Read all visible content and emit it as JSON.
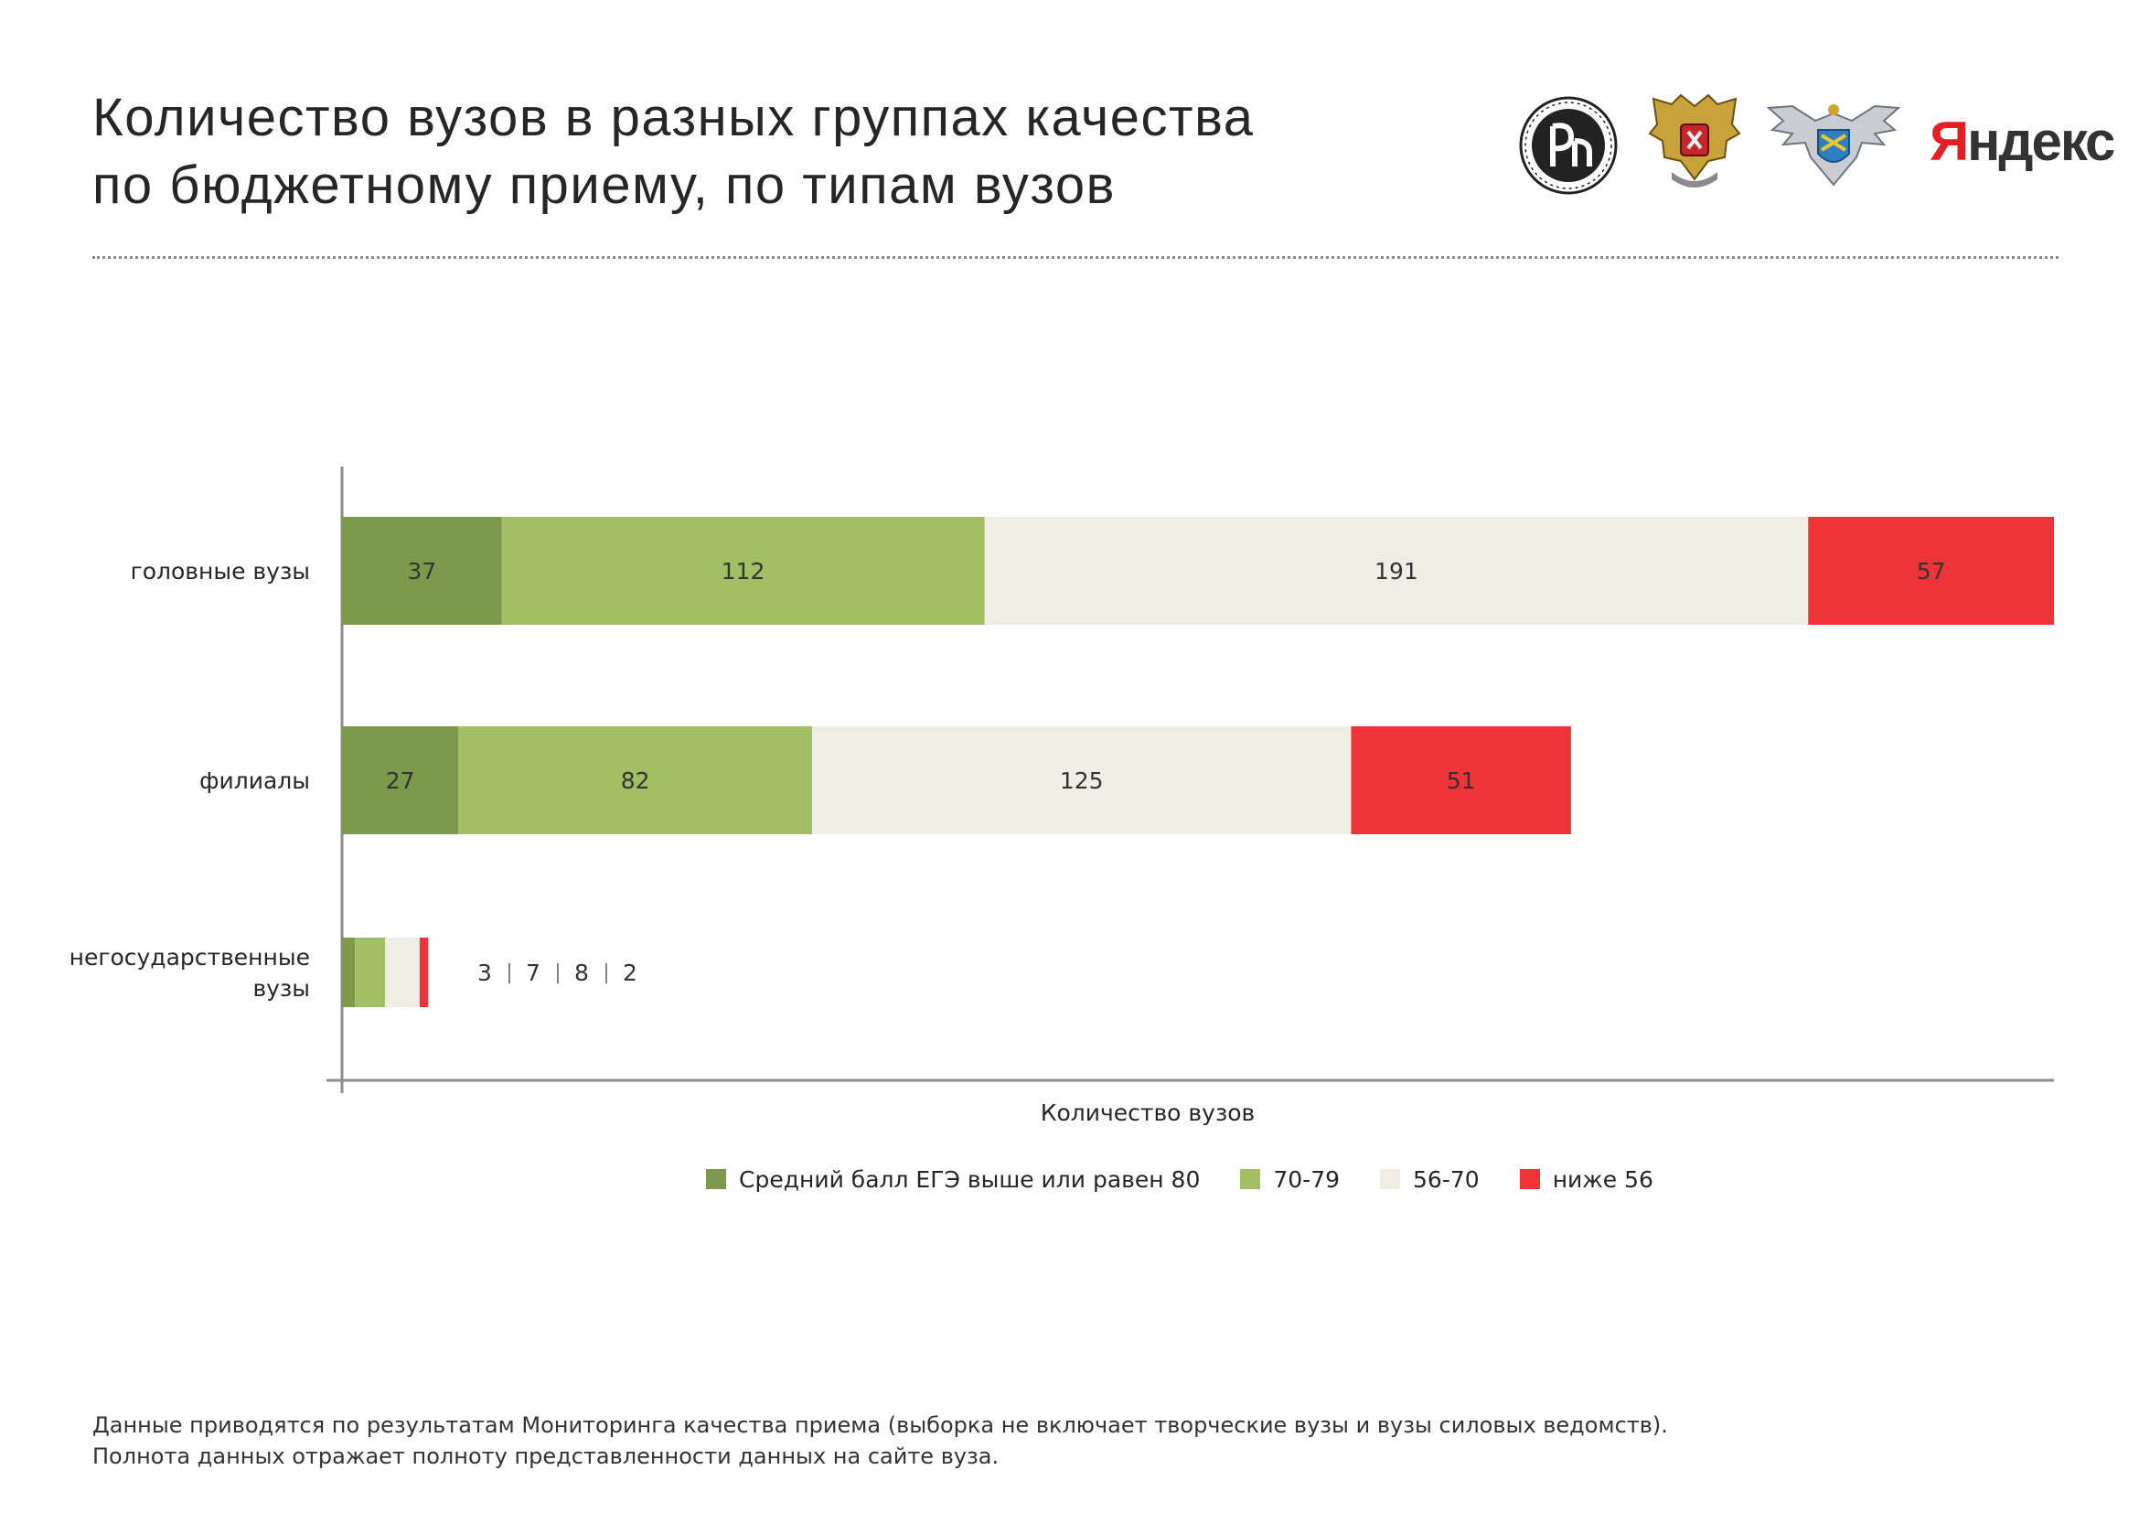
{
  "header": {
    "title_line1": "Количество вузов в разных группах качества",
    "title_line2": "по бюджетному приему, по типам вузов",
    "logos": [
      "hse-logo",
      "ministry-eagle-emblem",
      "rosobrnadzor-emblem",
      "yandex-logo"
    ],
    "yandex_first": "Я",
    "yandex_rest": "ндекс"
  },
  "chart_data": {
    "type": "bar",
    "orientation": "horizontal",
    "stacked": true,
    "categories": [
      "головные вузы",
      "филиалы",
      "негосударственные вузы"
    ],
    "category_lines": [
      [
        "головные вузы"
      ],
      [
        "филиалы"
      ],
      [
        "негосударственные",
        "вузы"
      ]
    ],
    "series": [
      {
        "name": "Средний балл ЕГЭ выше или равен 80",
        "color": "#7d9a4c",
        "values": [
          37,
          27,
          3
        ]
      },
      {
        "name": "70-79",
        "color": "#a2bf65",
        "values": [
          112,
          82,
          7
        ]
      },
      {
        "name": "56-70",
        "color": "#efede4",
        "values": [
          191,
          125,
          8
        ]
      },
      {
        "name": "ниже 56",
        "color": "#ee3439",
        "values": [
          57,
          51,
          2
        ]
      }
    ],
    "xlabel": "Количество вузов",
    "ylabel": "",
    "xlim": [
      0,
      397
    ],
    "grid": false,
    "legend_position": "bottom",
    "small_values_separator": "|"
  },
  "footnote": {
    "line1": "Данные приводятся по результатам Мониторинга качества приема (выборка не включает творческие вузы и вузы силовых ведомств).",
    "line2": "Полнота данных отражает полноту представленности данных на сайте вуза."
  }
}
